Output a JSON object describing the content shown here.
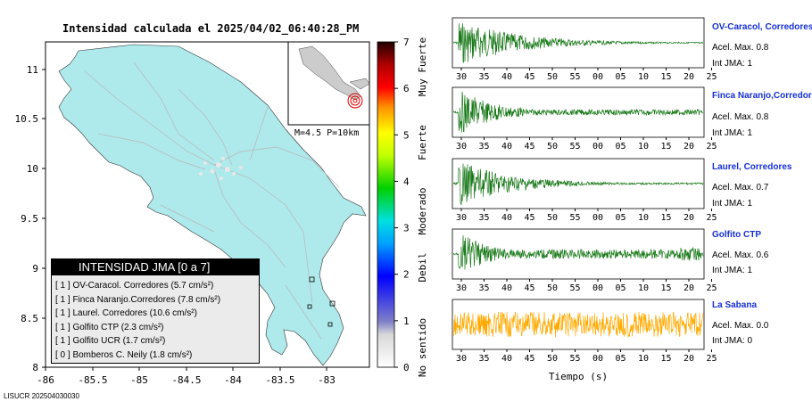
{
  "title": "Intensidad calculada el 2025/04/02_06:40:28_PM",
  "footer_id": "LISUCR 202504030030",
  "map": {
    "x_ticks": [
      "-86",
      "-85.5",
      "-85",
      "-84.5",
      "-84",
      "-83.5",
      "-83"
    ],
    "y_ticks": [
      "8",
      "8.5",
      "9",
      "9.5",
      "10",
      "10.5",
      "11"
    ],
    "land_color": "#aee9ec",
    "inset_label": "M=4.5 P=10km"
  },
  "colorbar": {
    "ticks": [
      "0",
      "1",
      "2",
      "3",
      "4",
      "5",
      "6",
      "7"
    ],
    "labels": [
      "No sentido",
      "Debil",
      "Moderado",
      "Fuerte",
      "Muy Fuerte"
    ]
  },
  "legend": {
    "title": "INTENSIDAD JMA [0 a 7]",
    "items": [
      "[ 1 ]  OV-Caracol. Corredores (5.7 cm/s²)",
      "[ 1 ]  Finca Naranjo.Corredores (7.8 cm/s²)",
      "[ 1 ]  Laurel. Corredores (10.6 cm/s²)",
      "[ 1 ]  Golfito CTP (2.3 cm/s²)",
      "[ 1 ]  Golfito UCR (1.7 cm/s²)",
      "[ 0 ]  Bomberos C. Neily (1.8 cm/s²)"
    ]
  },
  "waveform_x_ticks": [
    "30",
    "35",
    "40",
    "45",
    "50",
    "55",
    "00",
    "05",
    "10",
    "15",
    "20",
    "25"
  ],
  "waveform_xlabel": "Tiempo (s)",
  "stations": [
    {
      "name": "OV-Caracol, Corredores",
      "acel": "Acel. Max. 0.8",
      "jma": "Int JMA: 1",
      "color": "#1a7a1a"
    },
    {
      "name": "Finca Naranjo,Corredores",
      "acel": "Acel. Max. 0.8",
      "jma": "Int JMA: 1",
      "color": "#1a7a1a"
    },
    {
      "name": "Laurel, Corredores",
      "acel": "Acel. Max. 0.7",
      "jma": "Int JMA: 1",
      "color": "#1a7a1a"
    },
    {
      "name": "Golfito CTP",
      "acel": "Acel. Max. 0.6",
      "jma": "Int JMA: 1",
      "color": "#1a7a1a"
    },
    {
      "name": "La Sabana",
      "acel": "Acel. Max. 0.0",
      "jma": "Int JMA: 0",
      "color": "#ffaa00"
    }
  ],
  "chart_data": {
    "type": "heatmap",
    "title": "Intensidad calculada el 2025/04/02_06:40:28_PM",
    "xlim": [
      -86.2,
      -82.5
    ],
    "ylim": [
      8,
      11.3
    ],
    "colorbar_range": [
      0,
      7
    ],
    "epicenter": {
      "label": "M=4.5 P=10km"
    }
  }
}
